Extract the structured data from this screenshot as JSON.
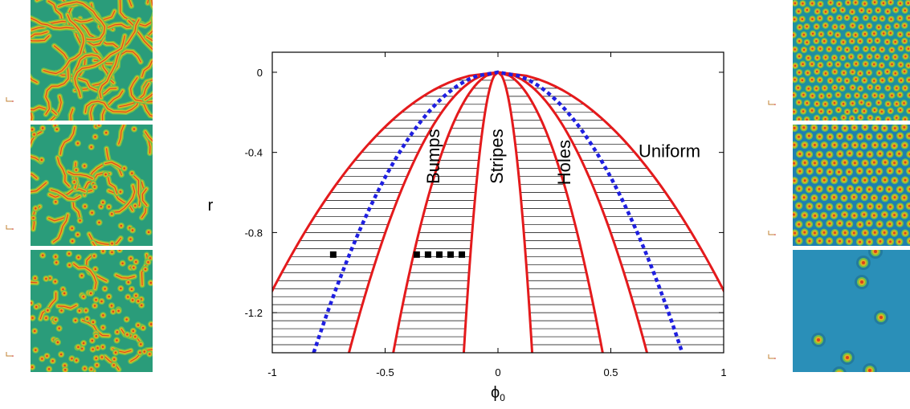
{
  "chart_data": {
    "type": "line",
    "title": "",
    "xlabel": "ϕ",
    "xlabel_sub": "0",
    "ylabel": "r",
    "xlim": [
      -1,
      1
    ],
    "ylim": [
      -1.4,
      0.1
    ],
    "x_ticks": [
      {
        "value": -1,
        "label": "-1"
      },
      {
        "value": -0.5,
        "label": "-0.5"
      },
      {
        "value": 0,
        "label": "0"
      },
      {
        "value": 0.5,
        "label": "0.5"
      },
      {
        "value": 1,
        "label": "1"
      }
    ],
    "y_ticks": [
      {
        "value": 0,
        "label": "0"
      },
      {
        "value": -0.4,
        "label": "-0.4"
      },
      {
        "value": -0.8,
        "label": "-0.8"
      },
      {
        "value": -1.2,
        "label": "-1.2"
      }
    ],
    "region_labels": [
      {
        "text": "Bumps",
        "x": -0.28,
        "y": -0.42,
        "rotate": -90
      },
      {
        "text": "Stripes",
        "x": 0,
        "y": -0.42,
        "rotate": -90
      },
      {
        "text": "Holes",
        "x": 0.3,
        "y": -0.45,
        "rotate": -90
      },
      {
        "text": "Uniform",
        "x": 0.76,
        "y": -0.4,
        "rotate": 0
      }
    ],
    "boundary_curves": [
      {
        "kind": "outer",
        "coef": 0.958
      },
      {
        "kind": "bumps_inner",
        "coef": 0.558
      },
      {
        "kind": "stripes_outer",
        "coef": 0.392
      },
      {
        "kind": "stripes_inner",
        "coef": 0.128
      }
    ],
    "dashed_curve": {
      "kind": "mean_field",
      "coef": 0.69
    },
    "hatch_spacing_r": 0.04,
    "marker_points": [
      {
        "x": -0.73,
        "y": -0.91
      },
      {
        "x": -0.36,
        "y": -0.91
      },
      {
        "x": -0.31,
        "y": -0.91
      },
      {
        "x": -0.26,
        "y": -0.91
      },
      {
        "x": -0.21,
        "y": -0.91
      },
      {
        "x": -0.16,
        "y": -0.91
      }
    ],
    "colors": {
      "boundary": "#e41a1c",
      "dashed": "#1f1fe0",
      "hatch": "#000000",
      "marker": "#000000"
    }
  },
  "panels": {
    "left": [
      {
        "pattern": "labyrinth-stripes"
      },
      {
        "pattern": "stripes-and-spots"
      },
      {
        "pattern": "spots-with-short-stripes"
      }
    ],
    "right": [
      {
        "pattern": "dense-spots"
      },
      {
        "pattern": "hexagonal-spots"
      },
      {
        "pattern": "sparse-spots"
      }
    ]
  }
}
